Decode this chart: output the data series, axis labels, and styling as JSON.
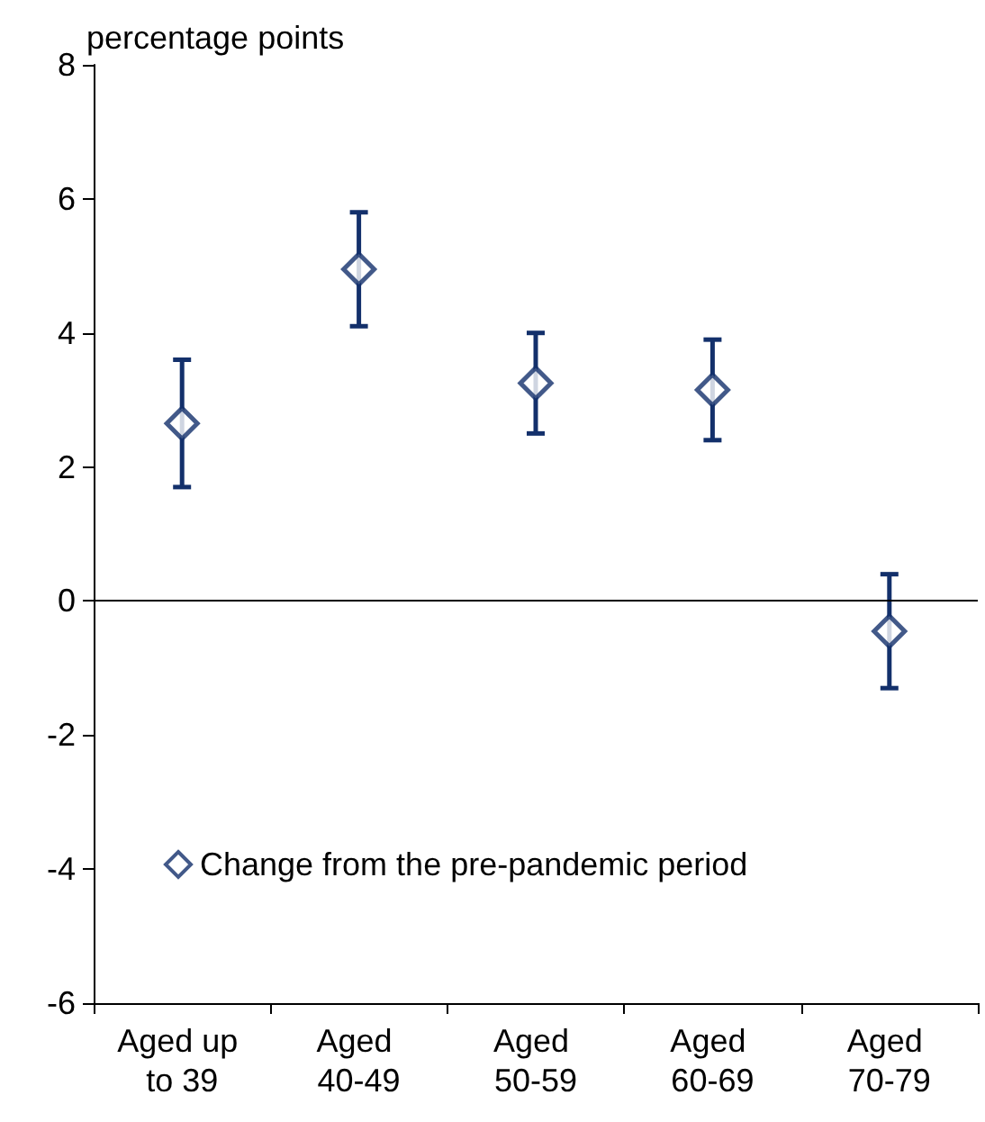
{
  "chart_data": {
    "type": "scatter",
    "ylabel": "percentage points",
    "categories": [
      "Aged up to 39",
      "Aged 40-49",
      "Aged 50-59",
      "Aged 60-69",
      "Aged 70-79"
    ],
    "series": [
      {
        "name": "Change from the pre-pandemic period",
        "color": "#13306b",
        "values": [
          2.65,
          4.95,
          3.25,
          3.15,
          -0.45
        ],
        "errors": [
          [
            1.7,
            3.6
          ],
          [
            4.1,
            5.8
          ],
          [
            2.5,
            4.0
          ],
          [
            2.4,
            3.9
          ],
          [
            -1.3,
            0.4
          ]
        ]
      }
    ],
    "ylim": [
      -6,
      8
    ],
    "yticks": [
      -6,
      -4,
      -2,
      0,
      2,
      4,
      6,
      8
    ],
    "ref_lines": [
      {
        "axis": "y",
        "value": 0,
        "color": "#000000"
      }
    ],
    "marker": "diamond",
    "grid": false,
    "legend": "bottom left"
  }
}
